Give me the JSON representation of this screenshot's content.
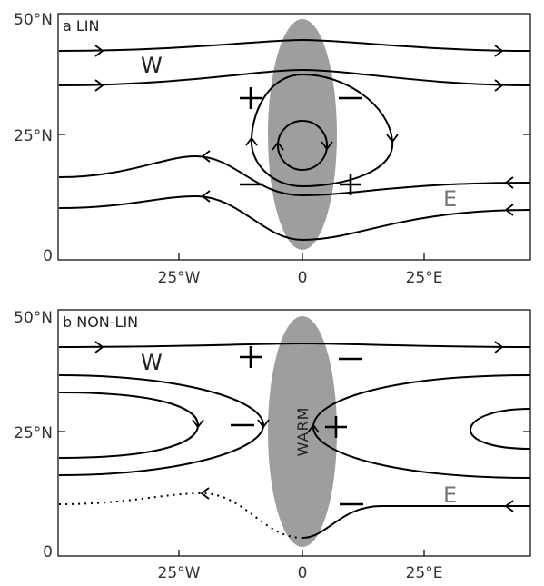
{
  "panels": [
    {
      "label": "a  LIN",
      "y_ticks": [
        "50°N",
        "25°N",
        "0"
      ],
      "x_ticks": [
        "25°W",
        "0",
        "25°E"
      ],
      "regions": {
        "west": "W",
        "east": "E"
      }
    },
    {
      "label": "b  NON-LIN",
      "y_ticks": [
        "50°N",
        "25°N",
        "0"
      ],
      "x_ticks": [
        "25°W",
        "0",
        "25°E"
      ],
      "regions": {
        "west": "W",
        "east": "E"
      },
      "heating_label": "WARM"
    }
  ],
  "colors": {
    "heating_region": "#9e9e9e",
    "lines": "#000000"
  }
}
